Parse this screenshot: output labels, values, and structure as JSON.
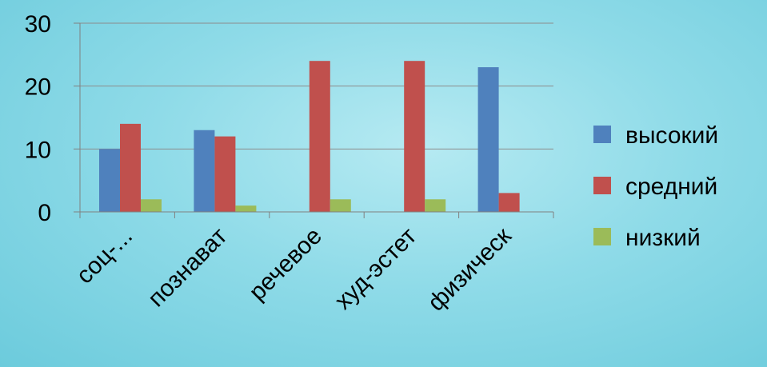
{
  "chart_data": {
    "type": "bar",
    "categories": [
      "соц-...",
      "познават",
      "речевое",
      "худ-эстет",
      "физическ"
    ],
    "series": [
      {
        "name": "высокий",
        "values": [
          10,
          13,
          0,
          0,
          23
        ]
      },
      {
        "name": "средний",
        "values": [
          14,
          12,
          24,
          24,
          3
        ]
      },
      {
        "name": "низкий",
        "values": [
          2,
          1,
          2,
          2,
          0
        ]
      }
    ],
    "ylim": [
      0,
      30
    ],
    "yticks": [
      "0",
      "10",
      "20",
      "30"
    ],
    "grid": true,
    "legend_position": "right",
    "colors": [
      "#4f81bd",
      "#c0504d",
      "#9bbb59"
    ]
  }
}
